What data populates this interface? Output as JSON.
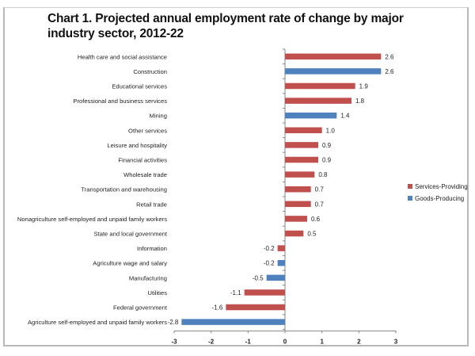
{
  "chart_data": {
    "type": "bar",
    "orientation": "horizontal",
    "title": "Chart 1. Projected annual employment rate of change by major industry sector, 2012-22",
    "xlabel": "",
    "ylabel": "",
    "xlim": [
      -3,
      3
    ],
    "x_ticks": [
      "-3",
      "-2",
      "-1",
      "0",
      "1",
      "2",
      "3"
    ],
    "grid": false,
    "legend_position": "right",
    "series_colors": {
      "Services-Providing": "#c0504d",
      "Goods-Producing": "#4f81bd"
    },
    "legend": [
      "Services-Providing",
      "Goods-Producing"
    ],
    "categories": [
      "Health care and social assistance",
      "Construction",
      "Educational services",
      "Professional and business services",
      "Mining",
      "Other services",
      "Leisure and hospitality",
      "Financial activities",
      "Wholesale trade",
      "Transportation and warehousing",
      "Retail trade",
      "Nonagriculture self-employed and unpaid family workers",
      "State and local government",
      "Information",
      "Agriculture wage and salary",
      "Manufacturing",
      "Utilities",
      "Federal government",
      "Agriculture self-employed and unpaid family workers"
    ],
    "values": [
      2.6,
      2.6,
      1.9,
      1.8,
      1.4,
      1.0,
      0.9,
      0.9,
      0.8,
      0.7,
      0.7,
      0.6,
      0.5,
      -0.2,
      -0.2,
      -0.5,
      -1.1,
      -1.6,
      -2.8
    ],
    "value_labels": [
      "2.6",
      "2.6",
      "1.9",
      "1.8",
      "1.4",
      "1.0",
      "0.9",
      "0.9",
      "0.8",
      "0.7",
      "0.7",
      "0.6",
      "0.5",
      "-0.2",
      "-0.2",
      "-0.5",
      "-1.1",
      "-1.6",
      "-2.8"
    ],
    "series": [
      "Services-Providing",
      "Goods-Producing",
      "Services-Providing",
      "Services-Providing",
      "Goods-Producing",
      "Services-Providing",
      "Services-Providing",
      "Services-Providing",
      "Services-Providing",
      "Services-Providing",
      "Services-Providing",
      "Services-Providing",
      "Services-Providing",
      "Services-Providing",
      "Goods-Producing",
      "Goods-Producing",
      "Services-Providing",
      "Services-Providing",
      "Goods-Producing"
    ]
  }
}
